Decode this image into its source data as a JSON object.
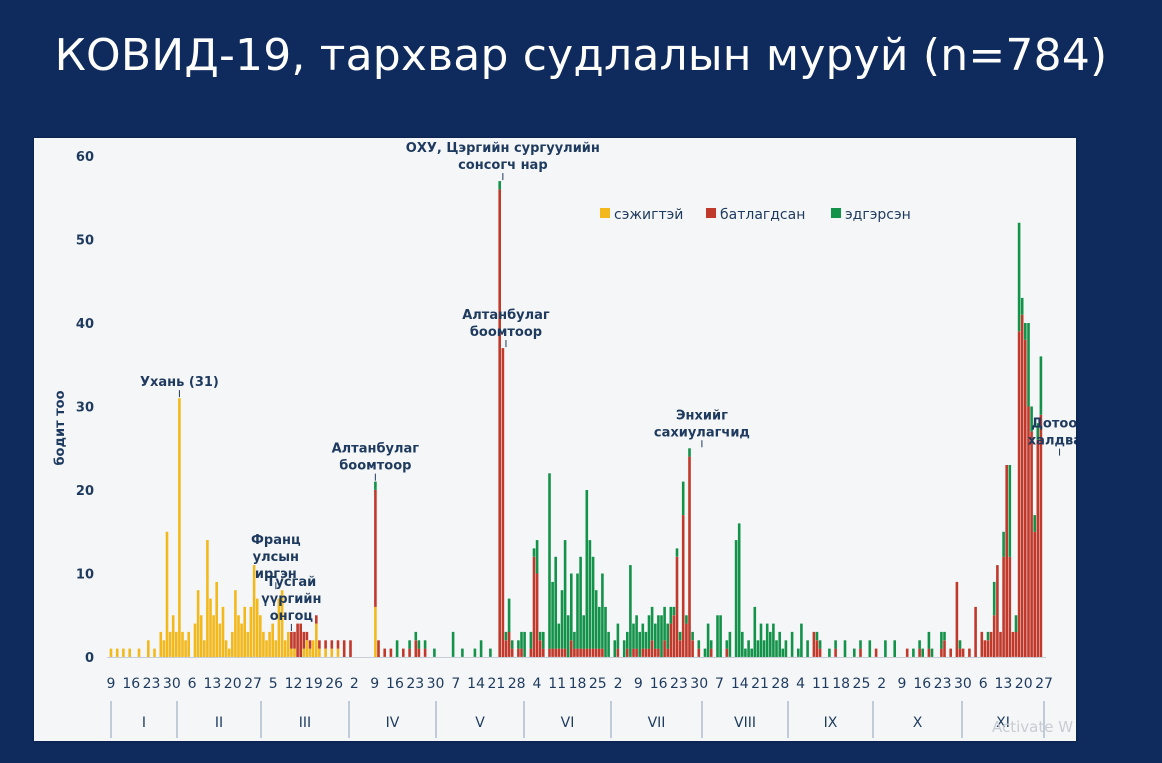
{
  "slide": {
    "title": "КОВИД-19, тархвар судлалын муруй (n=784)",
    "watermark": "Activate W"
  },
  "chart_data": {
    "type": "bar",
    "stacked": true,
    "ylabel": "бодит тоо",
    "ylim": [
      0,
      60
    ],
    "yticks": [
      0,
      10,
      20,
      30,
      40,
      50,
      60
    ],
    "grid": false,
    "legend_position": "top-right",
    "series": [
      {
        "name": "сэжигтэй",
        "color": "#f2b81c"
      },
      {
        "name": "батлагдсан",
        "color": "#c0392b"
      },
      {
        "name": "эдгэрсэн",
        "color": "#13924a"
      }
    ],
    "x_day_labels": [
      "9",
      "16",
      "23",
      "30",
      "6",
      "13",
      "20",
      "27",
      "5",
      "12",
      "19",
      "26",
      "2",
      "9",
      "16",
      "23",
      "30",
      "7",
      "14",
      "21",
      "28",
      "4",
      "11",
      "18",
      "25",
      "2",
      "9",
      "16",
      "23",
      "30",
      "7",
      "14",
      "21",
      "28",
      "4",
      "11",
      "18",
      "25",
      "2",
      "9",
      "16",
      "23",
      "30",
      "6",
      "13",
      "20",
      "27"
    ],
    "months": [
      "I",
      "II",
      "III",
      "IV",
      "V",
      "VI",
      "VII",
      "VIII",
      "IX",
      "X",
      "XI"
    ],
    "annotations": [
      {
        "text": [
          "Ухань (31)"
        ],
        "x": 31,
        "y": 31
      },
      {
        "text": [
          "Франц",
          "улсын",
          "иргэн"
        ],
        "x": 62,
        "y": 8
      },
      {
        "text": [
          "Тусгай",
          "үүргийн",
          "онгоц"
        ],
        "x": 67,
        "y": 3
      },
      {
        "text": [
          "Алтанбулаг",
          "боомтоор"
        ],
        "x": 94,
        "y": 21
      },
      {
        "text": [
          "ОХУ, Цэргийн сургуулийн",
          "сонсогч нар"
        ],
        "x": 135,
        "y": 57
      },
      {
        "text": [
          "Алтанбулаг",
          "боомтоор"
        ],
        "x": 136,
        "y": 37
      },
      {
        "text": [
          "Энхийг",
          "сахиулагчид"
        ],
        "x": 199,
        "y": 25
      },
      {
        "text": [
          "Дотоод",
          "халдвар"
        ],
        "x": 314,
        "y": 24
      }
    ],
    "bars": [
      {
        "x": 9,
        "s": 1,
        "c": 0,
        "r": 0
      },
      {
        "x": 11,
        "s": 1,
        "c": 0,
        "r": 0
      },
      {
        "x": 13,
        "s": 1,
        "c": 0,
        "r": 0
      },
      {
        "x": 15,
        "s": 1,
        "c": 0,
        "r": 0
      },
      {
        "x": 18,
        "s": 1,
        "c": 0,
        "r": 0
      },
      {
        "x": 21,
        "s": 2,
        "c": 0,
        "r": 0
      },
      {
        "x": 23,
        "s": 1,
        "c": 0,
        "r": 0
      },
      {
        "x": 25,
        "s": 3,
        "c": 0,
        "r": 0
      },
      {
        "x": 26,
        "s": 2,
        "c": 0,
        "r": 0
      },
      {
        "x": 27,
        "s": 15,
        "c": 0,
        "r": 0
      },
      {
        "x": 28,
        "s": 3,
        "c": 0,
        "r": 0
      },
      {
        "x": 29,
        "s": 5,
        "c": 0,
        "r": 0
      },
      {
        "x": 30,
        "s": 3,
        "c": 0,
        "r": 0
      },
      {
        "x": 31,
        "s": 31,
        "c": 0,
        "r": 0
      },
      {
        "x": 32,
        "s": 3,
        "c": 0,
        "r": 0
      },
      {
        "x": 33,
        "s": 2,
        "c": 0,
        "r": 0
      },
      {
        "x": 34,
        "s": 3,
        "c": 0,
        "r": 0
      },
      {
        "x": 36,
        "s": 4,
        "c": 0,
        "r": 0
      },
      {
        "x": 37,
        "s": 8,
        "c": 0,
        "r": 0
      },
      {
        "x": 38,
        "s": 5,
        "c": 0,
        "r": 0
      },
      {
        "x": 39,
        "s": 2,
        "c": 0,
        "r": 0
      },
      {
        "x": 40,
        "s": 14,
        "c": 0,
        "r": 0
      },
      {
        "x": 41,
        "s": 7,
        "c": 0,
        "r": 0
      },
      {
        "x": 42,
        "s": 5,
        "c": 0,
        "r": 0
      },
      {
        "x": 43,
        "s": 9,
        "c": 0,
        "r": 0
      },
      {
        "x": 44,
        "s": 4,
        "c": 0,
        "r": 0
      },
      {
        "x": 45,
        "s": 6,
        "c": 0,
        "r": 0
      },
      {
        "x": 46,
        "s": 2,
        "c": 0,
        "r": 0
      },
      {
        "x": 47,
        "s": 1,
        "c": 0,
        "r": 0
      },
      {
        "x": 48,
        "s": 3,
        "c": 0,
        "r": 0
      },
      {
        "x": 49,
        "s": 8,
        "c": 0,
        "r": 0
      },
      {
        "x": 50,
        "s": 5,
        "c": 0,
        "r": 0
      },
      {
        "x": 51,
        "s": 4,
        "c": 0,
        "r": 0
      },
      {
        "x": 52,
        "s": 6,
        "c": 0,
        "r": 0
      },
      {
        "x": 53,
        "s": 3,
        "c": 0,
        "r": 0
      },
      {
        "x": 54,
        "s": 6,
        "c": 0,
        "r": 0
      },
      {
        "x": 55,
        "s": 11,
        "c": 0,
        "r": 0
      },
      {
        "x": 56,
        "s": 7,
        "c": 0,
        "r": 0
      },
      {
        "x": 57,
        "s": 5,
        "c": 0,
        "r": 0
      },
      {
        "x": 58,
        "s": 3,
        "c": 0,
        "r": 0
      },
      {
        "x": 59,
        "s": 2,
        "c": 0,
        "r": 0
      },
      {
        "x": 60,
        "s": 3,
        "c": 0,
        "r": 0
      },
      {
        "x": 61,
        "s": 4,
        "c": 0,
        "r": 0
      },
      {
        "x": 62,
        "s": 2,
        "c": 0,
        "r": 0
      },
      {
        "x": 63,
        "s": 7,
        "c": 0,
        "r": 0
      },
      {
        "x": 64,
        "s": 8,
        "c": 0,
        "r": 0
      },
      {
        "x": 65,
        "s": 2,
        "c": 0,
        "r": 0
      },
      {
        "x": 66,
        "s": 3,
        "c": 0,
        "r": 0
      },
      {
        "x": 67,
        "s": 1,
        "c": 2,
        "r": 0
      },
      {
        "x": 68,
        "s": 1,
        "c": 2,
        "r": 0
      },
      {
        "x": 69,
        "s": 0,
        "c": 4,
        "r": 0
      },
      {
        "x": 70,
        "s": 0,
        "c": 4,
        "r": 0
      },
      {
        "x": 71,
        "s": 1,
        "c": 2,
        "r": 0
      },
      {
        "x": 72,
        "s": 2,
        "c": 1,
        "r": 0
      },
      {
        "x": 73,
        "s": 1,
        "c": 1,
        "r": 0
      },
      {
        "x": 74,
        "s": 2,
        "c": 0,
        "r": 0
      },
      {
        "x": 75,
        "s": 4,
        "c": 1,
        "r": 0
      },
      {
        "x": 76,
        "s": 1,
        "c": 1,
        "r": 0
      },
      {
        "x": 78,
        "s": 1,
        "c": 1,
        "r": 0
      },
      {
        "x": 80,
        "s": 1,
        "c": 1,
        "r": 0
      },
      {
        "x": 82,
        "s": 1,
        "c": 1,
        "r": 0
      },
      {
        "x": 84,
        "s": 0,
        "c": 2,
        "r": 0
      },
      {
        "x": 86,
        "s": 0,
        "c": 2,
        "r": 0
      },
      {
        "x": 94,
        "s": 6,
        "c": 14,
        "r": 1
      },
      {
        "x": 95,
        "s": 0,
        "c": 2,
        "r": 0
      },
      {
        "x": 97,
        "s": 0,
        "c": 1,
        "r": 0
      },
      {
        "x": 99,
        "s": 0,
        "c": 1,
        "r": 0
      },
      {
        "x": 101,
        "s": 0,
        "c": 0,
        "r": 2
      },
      {
        "x": 103,
        "s": 0,
        "c": 1,
        "r": 0
      },
      {
        "x": 105,
        "s": 0,
        "c": 1,
        "r": 1
      },
      {
        "x": 107,
        "s": 0,
        "c": 2,
        "r": 1
      },
      {
        "x": 108,
        "s": 0,
        "c": 1,
        "r": 1
      },
      {
        "x": 110,
        "s": 0,
        "c": 1,
        "r": 1
      },
      {
        "x": 113,
        "s": 0,
        "c": 0,
        "r": 1
      },
      {
        "x": 119,
        "s": 0,
        "c": 0,
        "r": 3
      },
      {
        "x": 122,
        "s": 0,
        "c": 0,
        "r": 1
      },
      {
        "x": 126,
        "s": 0,
        "c": 0,
        "r": 1
      },
      {
        "x": 128,
        "s": 0,
        "c": 0,
        "r": 2
      },
      {
        "x": 131,
        "s": 0,
        "c": 0,
        "r": 1
      },
      {
        "x": 134,
        "s": 0,
        "c": 56,
        "r": 1
      },
      {
        "x": 135,
        "s": 0,
        "c": 37,
        "r": 0
      },
      {
        "x": 136,
        "s": 0,
        "c": 2,
        "r": 1
      },
      {
        "x": 137,
        "s": 0,
        "c": 3,
        "r": 4
      },
      {
        "x": 138,
        "s": 0,
        "c": 1,
        "r": 1
      },
      {
        "x": 140,
        "s": 0,
        "c": 1,
        "r": 1
      },
      {
        "x": 141,
        "s": 0,
        "c": 1,
        "r": 2
      },
      {
        "x": 142,
        "s": 0,
        "c": 0,
        "r": 3
      },
      {
        "x": 144,
        "s": 0,
        "c": 1,
        "r": 2
      },
      {
        "x": 145,
        "s": 0,
        "c": 12,
        "r": 1
      },
      {
        "x": 146,
        "s": 0,
        "c": 10,
        "r": 4
      },
      {
        "x": 147,
        "s": 0,
        "c": 2,
        "r": 1
      },
      {
        "x": 148,
        "s": 0,
        "c": 1,
        "r": 2
      },
      {
        "x": 150,
        "s": 0,
        "c": 1,
        "r": 21
      },
      {
        "x": 151,
        "s": 0,
        "c": 1,
        "r": 8
      },
      {
        "x": 152,
        "s": 0,
        "c": 1,
        "r": 11
      },
      {
        "x": 153,
        "s": 0,
        "c": 1,
        "r": 3
      },
      {
        "x": 154,
        "s": 0,
        "c": 1,
        "r": 7
      },
      {
        "x": 155,
        "s": 0,
        "c": 1,
        "r": 13
      },
      {
        "x": 156,
        "s": 0,
        "c": 0,
        "r": 5
      },
      {
        "x": 157,
        "s": 0,
        "c": 2,
        "r": 8
      },
      {
        "x": 158,
        "s": 0,
        "c": 1,
        "r": 2
      },
      {
        "x": 159,
        "s": 0,
        "c": 1,
        "r": 9
      },
      {
        "x": 160,
        "s": 0,
        "c": 1,
        "r": 11
      },
      {
        "x": 161,
        "s": 0,
        "c": 1,
        "r": 4
      },
      {
        "x": 162,
        "s": 0,
        "c": 1,
        "r": 19
      },
      {
        "x": 163,
        "s": 0,
        "c": 1,
        "r": 13
      },
      {
        "x": 164,
        "s": 0,
        "c": 1,
        "r": 11
      },
      {
        "x": 165,
        "s": 0,
        "c": 1,
        "r": 7
      },
      {
        "x": 166,
        "s": 0,
        "c": 1,
        "r": 5
      },
      {
        "x": 167,
        "s": 0,
        "c": 1,
        "r": 9
      },
      {
        "x": 168,
        "s": 0,
        "c": 0,
        "r": 6
      },
      {
        "x": 169,
        "s": 0,
        "c": 0,
        "r": 3
      },
      {
        "x": 171,
        "s": 0,
        "c": 0,
        "r": 2
      },
      {
        "x": 172,
        "s": 0,
        "c": 1,
        "r": 3
      },
      {
        "x": 174,
        "s": 0,
        "c": 0,
        "r": 2
      },
      {
        "x": 175,
        "s": 0,
        "c": 1,
        "r": 2
      },
      {
        "x": 176,
        "s": 0,
        "c": 0,
        "r": 11
      },
      {
        "x": 177,
        "s": 0,
        "c": 1,
        "r": 3
      },
      {
        "x": 178,
        "s": 0,
        "c": 1,
        "r": 4
      },
      {
        "x": 179,
        "s": 0,
        "c": 0,
        "r": 3
      },
      {
        "x": 180,
        "s": 0,
        "c": 1,
        "r": 3
      },
      {
        "x": 181,
        "s": 0,
        "c": 1,
        "r": 2
      },
      {
        "x": 182,
        "s": 0,
        "c": 1,
        "r": 4
      },
      {
        "x": 183,
        "s": 0,
        "c": 2,
        "r": 4
      },
      {
        "x": 184,
        "s": 0,
        "c": 1,
        "r": 3
      },
      {
        "x": 185,
        "s": 0,
        "c": 1,
        "r": 4
      },
      {
        "x": 186,
        "s": 0,
        "c": 0,
        "r": 5
      },
      {
        "x": 187,
        "s": 0,
        "c": 2,
        "r": 4
      },
      {
        "x": 188,
        "s": 0,
        "c": 1,
        "r": 3
      },
      {
        "x": 189,
        "s": 0,
        "c": 4,
        "r": 2
      },
      {
        "x": 190,
        "s": 0,
        "c": 5,
        "r": 1
      },
      {
        "x": 191,
        "s": 0,
        "c": 12,
        "r": 1
      },
      {
        "x": 192,
        "s": 0,
        "c": 2,
        "r": 1
      },
      {
        "x": 193,
        "s": 0,
        "c": 17,
        "r": 4
      },
      {
        "x": 194,
        "s": 0,
        "c": 4,
        "r": 1
      },
      {
        "x": 195,
        "s": 0,
        "c": 24,
        "r": 1
      },
      {
        "x": 196,
        "s": 0,
        "c": 2,
        "r": 1
      },
      {
        "x": 198,
        "s": 0,
        "c": 1,
        "r": 1
      },
      {
        "x": 200,
        "s": 0,
        "c": 0,
        "r": 1
      },
      {
        "x": 201,
        "s": 0,
        "c": 0,
        "r": 4
      },
      {
        "x": 202,
        "s": 0,
        "c": 1,
        "r": 1
      },
      {
        "x": 204,
        "s": 0,
        "c": 0,
        "r": 5
      },
      {
        "x": 205,
        "s": 0,
        "c": 0,
        "r": 5
      },
      {
        "x": 207,
        "s": 0,
        "c": 1,
        "r": 1
      },
      {
        "x": 208,
        "s": 0,
        "c": 0,
        "r": 3
      },
      {
        "x": 210,
        "s": 0,
        "c": 0,
        "r": 14
      },
      {
        "x": 211,
        "s": 0,
        "c": 0,
        "r": 16
      },
      {
        "x": 212,
        "s": 0,
        "c": 0,
        "r": 3
      },
      {
        "x": 213,
        "s": 0,
        "c": 0,
        "r": 1
      },
      {
        "x": 214,
        "s": 0,
        "c": 0,
        "r": 2
      },
      {
        "x": 215,
        "s": 0,
        "c": 0,
        "r": 1
      },
      {
        "x": 216,
        "s": 0,
        "c": 0,
        "r": 6
      },
      {
        "x": 217,
        "s": 0,
        "c": 0,
        "r": 2
      },
      {
        "x": 218,
        "s": 0,
        "c": 0,
        "r": 4
      },
      {
        "x": 219,
        "s": 0,
        "c": 0,
        "r": 2
      },
      {
        "x": 220,
        "s": 0,
        "c": 0,
        "r": 4
      },
      {
        "x": 221,
        "s": 0,
        "c": 0,
        "r": 3
      },
      {
        "x": 222,
        "s": 0,
        "c": 0,
        "r": 4
      },
      {
        "x": 223,
        "s": 0,
        "c": 0,
        "r": 2
      },
      {
        "x": 224,
        "s": 0,
        "c": 0,
        "r": 3
      },
      {
        "x": 225,
        "s": 0,
        "c": 0,
        "r": 1
      },
      {
        "x": 226,
        "s": 0,
        "c": 0,
        "r": 2
      },
      {
        "x": 228,
        "s": 0,
        "c": 0,
        "r": 3
      },
      {
        "x": 230,
        "s": 0,
        "c": 0,
        "r": 1
      },
      {
        "x": 231,
        "s": 0,
        "c": 0,
        "r": 4
      },
      {
        "x": 233,
        "s": 0,
        "c": 0,
        "r": 2
      },
      {
        "x": 235,
        "s": 0,
        "c": 3,
        "r": 0
      },
      {
        "x": 236,
        "s": 0,
        "c": 2,
        "r": 1
      },
      {
        "x": 237,
        "s": 0,
        "c": 1,
        "r": 1
      },
      {
        "x": 240,
        "s": 0,
        "c": 0,
        "r": 1
      },
      {
        "x": 242,
        "s": 0,
        "c": 1,
        "r": 1
      },
      {
        "x": 245,
        "s": 0,
        "c": 0,
        "r": 2
      },
      {
        "x": 248,
        "s": 0,
        "c": 0,
        "r": 1
      },
      {
        "x": 250,
        "s": 0,
        "c": 1,
        "r": 1
      },
      {
        "x": 253,
        "s": 0,
        "c": 0,
        "r": 2
      },
      {
        "x": 255,
        "s": 0,
        "c": 1,
        "r": 0
      },
      {
        "x": 258,
        "s": 0,
        "c": 0,
        "r": 2
      },
      {
        "x": 261,
        "s": 0,
        "c": 0,
        "r": 2
      },
      {
        "x": 265,
        "s": 0,
        "c": 1,
        "r": 0
      },
      {
        "x": 267,
        "s": 0,
        "c": 0,
        "r": 1
      },
      {
        "x": 269,
        "s": 0,
        "c": 1,
        "r": 1
      },
      {
        "x": 270,
        "s": 0,
        "c": 0,
        "r": 1
      },
      {
        "x": 272,
        "s": 0,
        "c": 1,
        "r": 2
      },
      {
        "x": 273,
        "s": 0,
        "c": 0,
        "r": 1
      },
      {
        "x": 276,
        "s": 0,
        "c": 1,
        "r": 2
      },
      {
        "x": 277,
        "s": 0,
        "c": 2,
        "r": 1
      },
      {
        "x": 279,
        "s": 0,
        "c": 1,
        "r": 0
      },
      {
        "x": 281,
        "s": 0,
        "c": 9,
        "r": 0
      },
      {
        "x": 282,
        "s": 0,
        "c": 1,
        "r": 1
      },
      {
        "x": 283,
        "s": 0,
        "c": 1,
        "r": 0
      },
      {
        "x": 285,
        "s": 0,
        "c": 1,
        "r": 0
      },
      {
        "x": 287,
        "s": 0,
        "c": 6,
        "r": 0
      },
      {
        "x": 289,
        "s": 0,
        "c": 3,
        "r": 0
      },
      {
        "x": 290,
        "s": 0,
        "c": 2,
        "r": 0
      },
      {
        "x": 291,
        "s": 0,
        "c": 2,
        "r": 1
      },
      {
        "x": 292,
        "s": 0,
        "c": 3,
        "r": 0
      },
      {
        "x": 293,
        "s": 0,
        "c": 5,
        "r": 4
      },
      {
        "x": 294,
        "s": 0,
        "c": 11,
        "r": 0
      },
      {
        "x": 295,
        "s": 0,
        "c": 3,
        "r": 0
      },
      {
        "x": 296,
        "s": 0,
        "c": 12,
        "r": 3
      },
      {
        "x": 297,
        "s": 0,
        "c": 23,
        "r": 0
      },
      {
        "x": 298,
        "s": 0,
        "c": 12,
        "r": 11
      },
      {
        "x": 299,
        "s": 0,
        "c": 3,
        "r": 0
      },
      {
        "x": 300,
        "s": 0,
        "c": 3,
        "r": 2
      },
      {
        "x": 301,
        "s": 0,
        "c": 39,
        "r": 13
      },
      {
        "x": 302,
        "s": 0,
        "c": 41,
        "r": 2
      },
      {
        "x": 303,
        "s": 0,
        "c": 38,
        "r": 2
      },
      {
        "x": 304,
        "s": 0,
        "c": 30,
        "r": 10
      },
      {
        "x": 305,
        "s": 0,
        "c": 27,
        "r": 3
      },
      {
        "x": 306,
        "s": 0,
        "c": 15,
        "r": 2
      },
      {
        "x": 307,
        "s": 0,
        "c": 26,
        "r": 2
      },
      {
        "x": 308,
        "s": 0,
        "c": 29,
        "r": 7
      }
    ]
  }
}
